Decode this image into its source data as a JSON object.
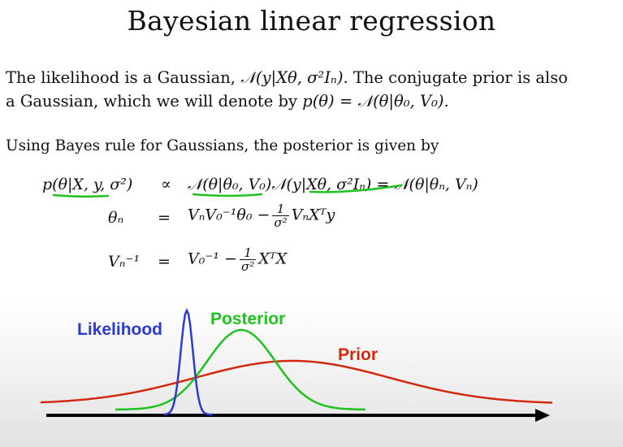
{
  "slide": {
    "title": "Bayesian linear regression",
    "para1": {
      "line1_text": "The likelihood is a Gaussian,",
      "line1_math": "𝒩(y|Xθ, σ²Iₙ).",
      "line1_tail": "The conjugate prior is also",
      "line2_text": "a Gaussian, which we will denote by",
      "line2_math": "p(θ) = 𝒩(θ|θ₀, V₀)."
    },
    "para2": "Using Bayes rule for Gaussians, the posterior is given by",
    "equations": {
      "eq1_lhs": "p(θ|X, y, σ²)",
      "eq1_rel": "∝",
      "eq1_rhs": "𝒩(θ|θ₀, V₀)𝒩(y|Xθ, σ²Iₙ) = 𝒩(θ|θₙ, Vₙ)",
      "eq2_lhs": "θₙ",
      "eq2_rel": "=",
      "eq2_rhs_a": "VₙV₀⁻¹θ₀ −",
      "eq2_frac_num": "1",
      "eq2_frac_den": "σ²",
      "eq2_rhs_b": "VₙXᵀy",
      "eq3_lhs": "Vₙ⁻¹",
      "eq3_rel": "=",
      "eq3_rhs_a": "V₀⁻¹ −",
      "eq3_frac_num": "1",
      "eq3_frac_den": "σ²",
      "eq3_rhs_b": "XᵀX"
    }
  },
  "figure": {
    "labels": {
      "likelihood": "Likelihood",
      "posterior": "Posterior",
      "prior": "Prior"
    },
    "colors": {
      "likelihood": "#2b3bd1",
      "posterior": "#1fc21f",
      "prior": "#d22a10",
      "annotation": "#1fc21f",
      "axis": "#000000"
    }
  }
}
